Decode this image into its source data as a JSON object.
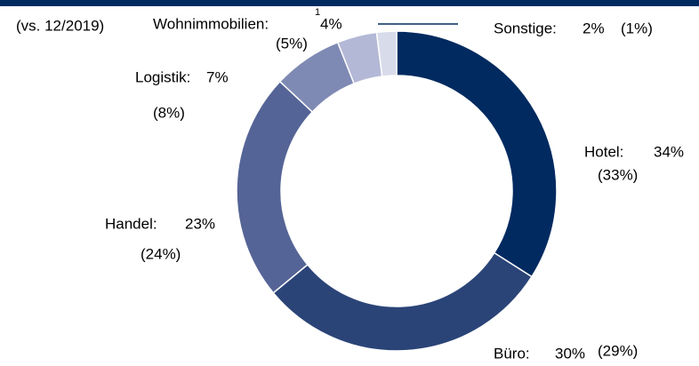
{
  "chart_data": {
    "type": "donut",
    "subtitle": "(vs. 12/2019)",
    "categories": [
      "Hotel:",
      "Büro:",
      "Handel:",
      "Logistik:",
      "Wohnimmobilien:",
      "Sonstige:"
    ],
    "values": [
      34,
      30,
      23,
      7,
      4,
      2
    ],
    "value_labels": [
      "34%",
      "30%",
      "23%",
      "7%",
      "4%",
      "2%"
    ],
    "prior_labels": [
      "(33%)",
      "(29%)",
      "(24%)",
      "(8%)",
      "(5%)",
      "(1%)"
    ],
    "footnote_markers": [
      null,
      null,
      null,
      null,
      "1",
      null
    ],
    "colors": [
      "#002a60",
      "#2b4478",
      "#556496",
      "#7f8ab4",
      "#b3b8d6",
      "#d8dbea"
    ]
  }
}
